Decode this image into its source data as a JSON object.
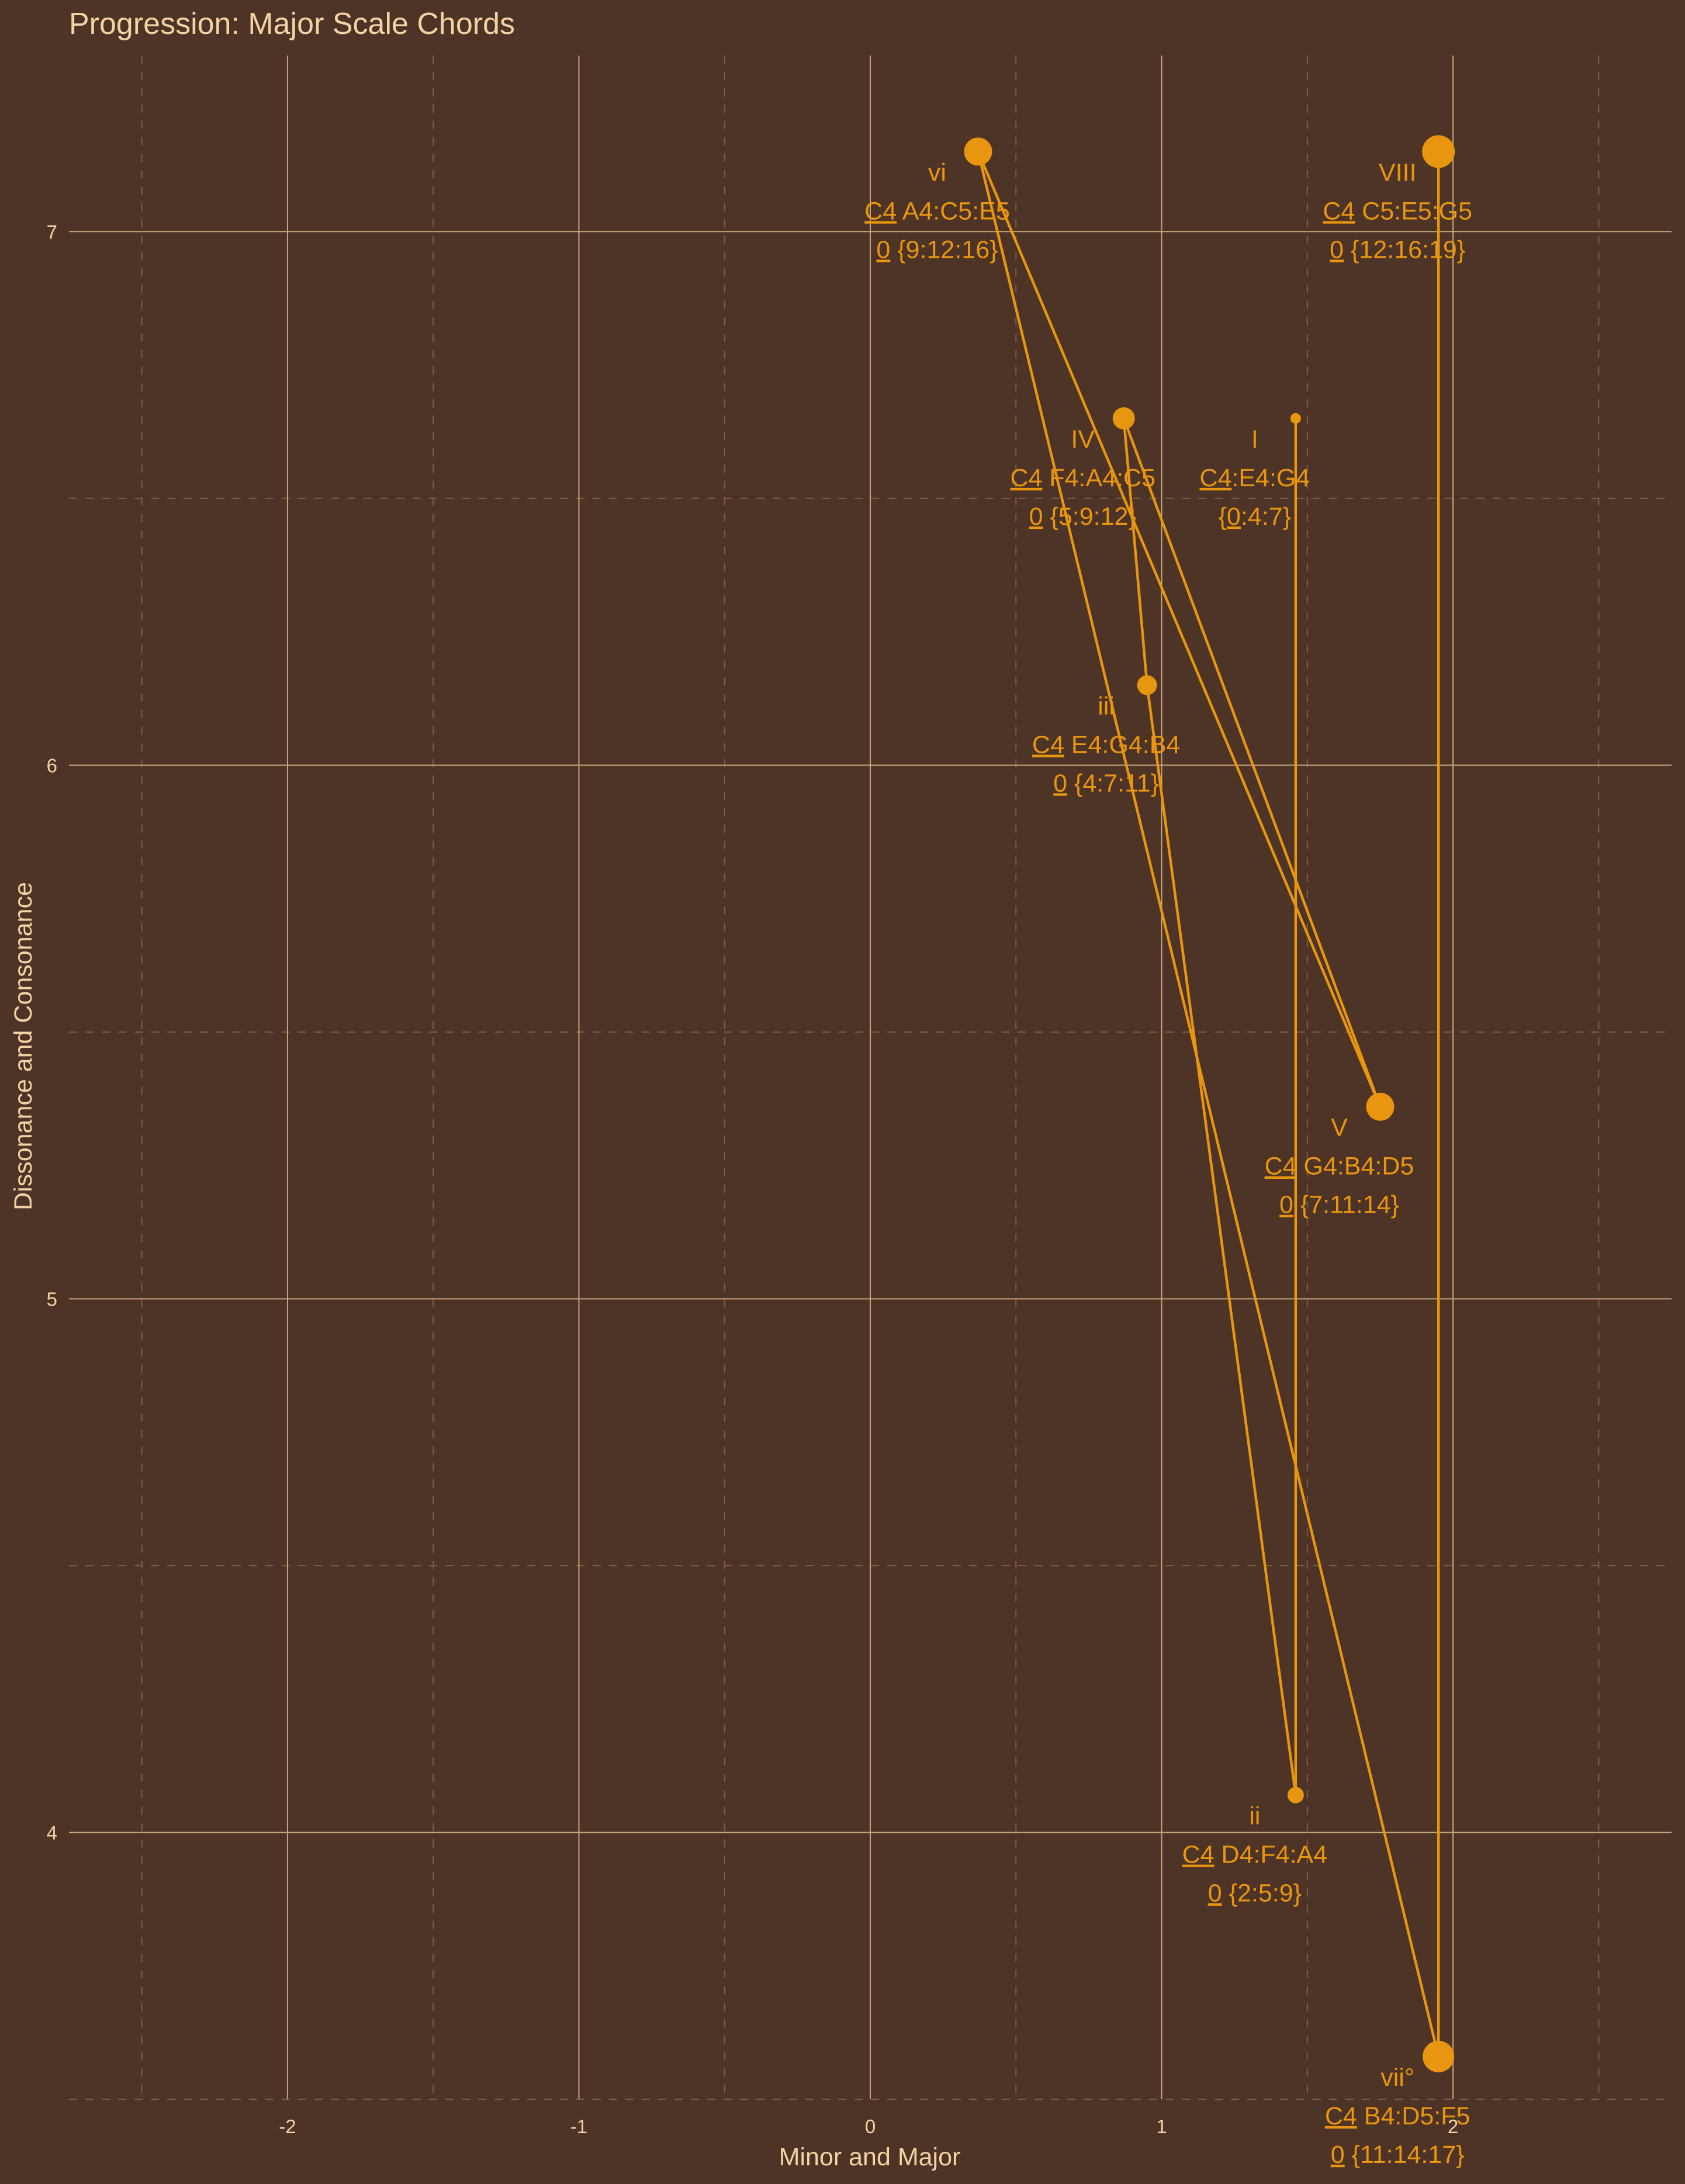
{
  "chart_data": {
    "type": "scatter",
    "title": "Progression: Major Scale Chords",
    "xlabel": "Minor and Major",
    "ylabel": "Dissonance and Consonance",
    "xlim": [
      -2.75,
      2.75
    ],
    "ylim": [
      3.5,
      7.33
    ],
    "x_ticks": [
      -2,
      -1,
      0,
      1,
      2
    ],
    "x_tick_labels": [
      "-2",
      "-1",
      "0",
      "1",
      "2"
    ],
    "y_ticks": [
      4,
      5,
      6,
      7
    ],
    "y_tick_labels": [
      "4",
      "5",
      "6",
      "7"
    ],
    "grid": true,
    "connect_in_order": true,
    "colors": {
      "background": "#4e3426",
      "series": "#e8950f",
      "text": "#f3d3a3",
      "grid": "#c8a67a"
    },
    "points": [
      {
        "x": 1.46,
        "y": 6.65,
        "size": 9,
        "roman": "I",
        "notes": "C4:E4:G4",
        "notes_prefix": "",
        "prefix_underline": "C4",
        "intervals": "{0:4:7}",
        "int_prefix": "",
        "int_underline": "0"
      },
      {
        "x": 1.46,
        "y": 4.07,
        "size": 14,
        "roman": "ii",
        "notes": "D4:F4:A4",
        "notes_prefix": "C4",
        "prefix_underline": "",
        "intervals": "{2:5:9}",
        "int_prefix": "0",
        "int_underline": ""
      },
      {
        "x": 0.95,
        "y": 6.15,
        "size": 17,
        "roman": "iii",
        "notes": "E4:G4:B4",
        "notes_prefix": "C4",
        "prefix_underline": "",
        "intervals": "{4:7:11}",
        "int_prefix": "0",
        "int_underline": ""
      },
      {
        "x": 0.87,
        "y": 6.65,
        "size": 19,
        "roman": "IV",
        "notes": "F4:A4:C5",
        "notes_prefix": "C4",
        "prefix_underline": "",
        "intervals": "{5:9:12}",
        "int_prefix": "0",
        "int_underline": ""
      },
      {
        "x": 1.75,
        "y": 5.36,
        "size": 24,
        "roman": "V",
        "notes": "G4:B4:D5",
        "notes_prefix": "C4",
        "prefix_underline": "",
        "intervals": "{7:11:14}",
        "int_prefix": "0",
        "int_underline": ""
      },
      {
        "x": 0.37,
        "y": 7.15,
        "size": 24,
        "roman": "vi",
        "notes": "A4:C5:E5",
        "notes_prefix": "C4",
        "prefix_underline": "",
        "intervals": "{9:12:16}",
        "int_prefix": "0",
        "int_underline": ""
      },
      {
        "x": 1.95,
        "y": 3.58,
        "size": 27,
        "roman": "vii°",
        "notes": "B4:D5:F5",
        "notes_prefix": "C4",
        "prefix_underline": "",
        "intervals": "{11:14:17}",
        "int_prefix": "0",
        "int_underline": ""
      },
      {
        "x": 1.95,
        "y": 7.15,
        "size": 28,
        "roman": "VIII",
        "notes": "C5:E5:G5",
        "notes_prefix": "C4",
        "prefix_underline": "",
        "intervals": "{12:16:19}",
        "int_prefix": "0",
        "int_underline": ""
      }
    ]
  }
}
